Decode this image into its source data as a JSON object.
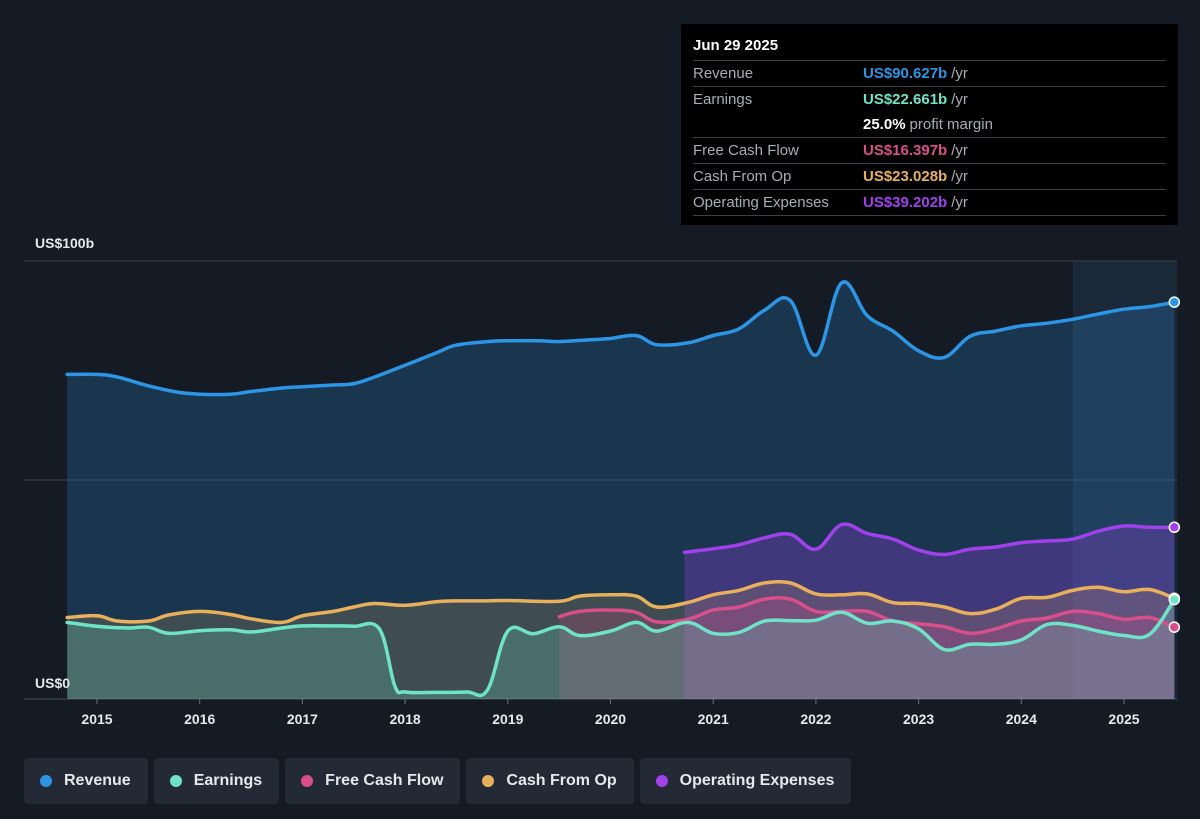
{
  "chart_data": {
    "type": "line",
    "ylabel_top": "US$100b",
    "ylabel_bottom": "US$0",
    "ylim": [
      0,
      100
    ],
    "x_ticks": [
      "2015",
      "2016",
      "2017",
      "2018",
      "2019",
      "2020",
      "2021",
      "2022",
      "2023",
      "2024",
      "2025"
    ],
    "series": [
      {
        "name": "Revenue",
        "color": "#2d95e6",
        "fill": true,
        "points": [
          [
            2014.71,
            74.1
          ],
          [
            2015.0,
            74.1
          ],
          [
            2015.2,
            73.5
          ],
          [
            2015.5,
            71.5
          ],
          [
            2015.8,
            70.0
          ],
          [
            2016.0,
            69.6
          ],
          [
            2016.3,
            69.6
          ],
          [
            2016.5,
            70.2
          ],
          [
            2016.8,
            71.0
          ],
          [
            2017.0,
            71.3
          ],
          [
            2017.3,
            71.7
          ],
          [
            2017.5,
            72.0
          ],
          [
            2017.7,
            73.5
          ],
          [
            2018.0,
            76.2
          ],
          [
            2018.3,
            79.0
          ],
          [
            2018.5,
            80.8
          ],
          [
            2018.8,
            81.6
          ],
          [
            2019.0,
            81.8
          ],
          [
            2019.3,
            81.8
          ],
          [
            2019.5,
            81.6
          ],
          [
            2019.8,
            82.0
          ],
          [
            2020.0,
            82.3
          ],
          [
            2020.25,
            83.0
          ],
          [
            2020.45,
            80.9
          ],
          [
            2020.75,
            81.3
          ],
          [
            2021.0,
            83.0
          ],
          [
            2021.25,
            84.5
          ],
          [
            2021.5,
            88.8
          ],
          [
            2021.75,
            91.0
          ],
          [
            2022.0,
            78.5
          ],
          [
            2022.25,
            95.0
          ],
          [
            2022.5,
            87.5
          ],
          [
            2022.75,
            84.0
          ],
          [
            2023.0,
            79.5
          ],
          [
            2023.25,
            78.0
          ],
          [
            2023.5,
            82.8
          ],
          [
            2023.75,
            84.0
          ],
          [
            2024.0,
            85.2
          ],
          [
            2024.25,
            85.8
          ],
          [
            2024.5,
            86.7
          ],
          [
            2024.75,
            87.9
          ],
          [
            2025.0,
            89.0
          ],
          [
            2025.25,
            89.6
          ],
          [
            2025.49,
            90.6
          ]
        ]
      },
      {
        "name": "Operating Expenses",
        "color": "#a041ec",
        "fill": true,
        "points": [
          [
            2020.72,
            33.5
          ],
          [
            2021.0,
            34.3
          ],
          [
            2021.25,
            35.2
          ],
          [
            2021.5,
            36.8
          ],
          [
            2021.75,
            37.6
          ],
          [
            2022.0,
            34.2
          ],
          [
            2022.25,
            39.8
          ],
          [
            2022.5,
            37.8
          ],
          [
            2022.75,
            36.5
          ],
          [
            2023.0,
            34.0
          ],
          [
            2023.25,
            33.0
          ],
          [
            2023.5,
            34.2
          ],
          [
            2023.75,
            34.7
          ],
          [
            2024.0,
            35.7
          ],
          [
            2024.25,
            36.1
          ],
          [
            2024.5,
            36.5
          ],
          [
            2024.75,
            38.3
          ],
          [
            2025.0,
            39.5
          ],
          [
            2025.25,
            39.2
          ],
          [
            2025.49,
            39.2
          ]
        ]
      },
      {
        "name": "Cash From Op",
        "color": "#e9b05c",
        "fill": true,
        "points": [
          [
            2014.71,
            18.6
          ],
          [
            2015.0,
            19.0
          ],
          [
            2015.2,
            17.8
          ],
          [
            2015.5,
            17.8
          ],
          [
            2015.7,
            19.2
          ],
          [
            2016.0,
            20.0
          ],
          [
            2016.3,
            19.3
          ],
          [
            2016.5,
            18.3
          ],
          [
            2016.8,
            17.5
          ],
          [
            2017.0,
            19.0
          ],
          [
            2017.3,
            20.0
          ],
          [
            2017.5,
            21.0
          ],
          [
            2017.7,
            21.8
          ],
          [
            2018.0,
            21.4
          ],
          [
            2018.3,
            22.2
          ],
          [
            2018.5,
            22.4
          ],
          [
            2018.8,
            22.4
          ],
          [
            2019.0,
            22.5
          ],
          [
            2019.5,
            22.3
          ],
          [
            2019.7,
            23.5
          ],
          [
            2020.0,
            23.8
          ],
          [
            2020.25,
            23.5
          ],
          [
            2020.45,
            21.0
          ],
          [
            2020.75,
            22.0
          ],
          [
            2021.0,
            23.8
          ],
          [
            2021.25,
            24.8
          ],
          [
            2021.5,
            26.5
          ],
          [
            2021.75,
            26.5
          ],
          [
            2022.0,
            24.0
          ],
          [
            2022.25,
            23.8
          ],
          [
            2022.5,
            24.0
          ],
          [
            2022.75,
            22.0
          ],
          [
            2023.0,
            21.8
          ],
          [
            2023.25,
            21.0
          ],
          [
            2023.5,
            19.5
          ],
          [
            2023.75,
            20.5
          ],
          [
            2024.0,
            23.0
          ],
          [
            2024.25,
            23.2
          ],
          [
            2024.5,
            24.8
          ],
          [
            2024.75,
            25.5
          ],
          [
            2025.0,
            24.5
          ],
          [
            2025.25,
            25.0
          ],
          [
            2025.49,
            23.0
          ]
        ]
      },
      {
        "name": "Free Cash Flow",
        "color": "#d94f8b",
        "fill": true,
        "points": [
          [
            2019.5,
            18.8
          ],
          [
            2019.7,
            20.0
          ],
          [
            2020.0,
            20.3
          ],
          [
            2020.25,
            19.8
          ],
          [
            2020.45,
            17.6
          ],
          [
            2020.75,
            18.2
          ],
          [
            2021.0,
            20.3
          ],
          [
            2021.25,
            21.0
          ],
          [
            2021.5,
            22.8
          ],
          [
            2021.75,
            22.8
          ],
          [
            2022.0,
            20.0
          ],
          [
            2022.25,
            20.0
          ],
          [
            2022.5,
            20.0
          ],
          [
            2022.75,
            17.8
          ],
          [
            2023.0,
            17.2
          ],
          [
            2023.25,
            16.5
          ],
          [
            2023.5,
            15.0
          ],
          [
            2023.75,
            16.0
          ],
          [
            2024.0,
            17.8
          ],
          [
            2024.25,
            18.5
          ],
          [
            2024.5,
            20.0
          ],
          [
            2024.75,
            19.5
          ],
          [
            2025.0,
            18.2
          ],
          [
            2025.25,
            18.6
          ],
          [
            2025.49,
            16.4
          ]
        ]
      },
      {
        "name": "Earnings",
        "color": "#6fe3c8",
        "fill": true,
        "points": [
          [
            2014.71,
            17.5
          ],
          [
            2015.0,
            16.6
          ],
          [
            2015.3,
            16.2
          ],
          [
            2015.5,
            16.4
          ],
          [
            2015.7,
            15.0
          ],
          [
            2016.0,
            15.6
          ],
          [
            2016.3,
            15.8
          ],
          [
            2016.5,
            15.3
          ],
          [
            2016.8,
            16.2
          ],
          [
            2017.0,
            16.7
          ],
          [
            2017.3,
            16.7
          ],
          [
            2017.5,
            16.6
          ],
          [
            2017.75,
            16.0
          ],
          [
            2017.9,
            3.0
          ],
          [
            2018.0,
            1.6
          ],
          [
            2018.3,
            1.5
          ],
          [
            2018.6,
            1.6
          ],
          [
            2018.8,
            2.0
          ],
          [
            2019.0,
            15.5
          ],
          [
            2019.25,
            14.9
          ],
          [
            2019.5,
            16.5
          ],
          [
            2019.7,
            14.5
          ],
          [
            2020.0,
            15.5
          ],
          [
            2020.25,
            17.5
          ],
          [
            2020.45,
            15.5
          ],
          [
            2020.75,
            17.5
          ],
          [
            2021.0,
            15.0
          ],
          [
            2021.25,
            15.2
          ],
          [
            2021.5,
            17.8
          ],
          [
            2021.75,
            17.9
          ],
          [
            2022.0,
            18.0
          ],
          [
            2022.25,
            19.8
          ],
          [
            2022.5,
            17.3
          ],
          [
            2022.75,
            17.8
          ],
          [
            2023.0,
            16.0
          ],
          [
            2023.25,
            11.3
          ],
          [
            2023.5,
            12.5
          ],
          [
            2023.75,
            12.5
          ],
          [
            2024.0,
            13.5
          ],
          [
            2024.25,
            17.0
          ],
          [
            2024.5,
            16.8
          ],
          [
            2024.75,
            15.5
          ],
          [
            2025.0,
            14.5
          ],
          [
            2025.25,
            14.8
          ],
          [
            2025.49,
            22.7
          ]
        ]
      }
    ]
  },
  "tooltip": {
    "date": "Jun 29 2025",
    "rows": [
      {
        "label": "Revenue",
        "value": "US$90.627b",
        "unit": "/yr",
        "color": "#2d95e6"
      },
      {
        "label": "Earnings",
        "value": "US$22.661b",
        "unit": "/yr",
        "color": "#6fe3c8"
      },
      {
        "label": "",
        "value": "25.0%",
        "unit": "profit margin",
        "color": "#ffffff"
      },
      {
        "label": "Free Cash Flow",
        "value": "US$16.397b",
        "unit": "/yr",
        "color": "#d94f8b"
      },
      {
        "label": "Cash From Op",
        "value": "US$23.028b",
        "unit": "/yr",
        "color": "#e9b05c"
      },
      {
        "label": "Operating Expenses",
        "value": "US$39.202b",
        "unit": "/yr",
        "color": "#a041ec"
      }
    ]
  },
  "legend": [
    {
      "label": "Revenue",
      "color": "#2d95e6"
    },
    {
      "label": "Earnings",
      "color": "#6fe3c8"
    },
    {
      "label": "Free Cash Flow",
      "color": "#d94f8b"
    },
    {
      "label": "Cash From Op",
      "color": "#e9b05c"
    },
    {
      "label": "Operating Expenses",
      "color": "#a041ec"
    }
  ]
}
